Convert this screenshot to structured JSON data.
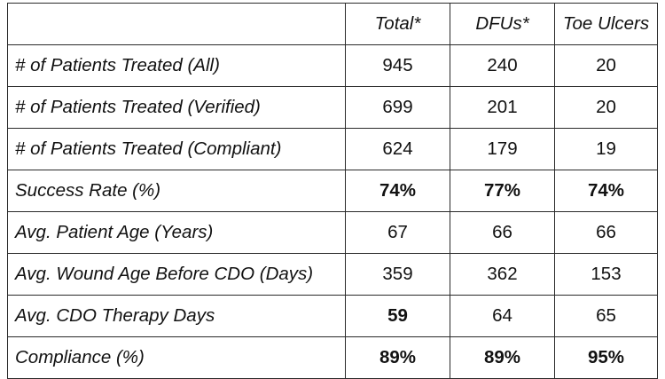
{
  "table": {
    "header": {
      "corner": "",
      "columns": [
        "Total*",
        "DFUs*",
        "Toe Ulcers"
      ]
    },
    "rows": [
      {
        "label": "# of Patients Treated (All)",
        "values": [
          "945",
          "240",
          "20"
        ],
        "bold": [
          false,
          false,
          false
        ]
      },
      {
        "label": "# of Patients Treated (Verified)",
        "values": [
          "699",
          "201",
          "20"
        ],
        "bold": [
          false,
          false,
          false
        ]
      },
      {
        "label": "# of Patients Treated (Compliant)",
        "values": [
          "624",
          "179",
          "19"
        ],
        "bold": [
          false,
          false,
          false
        ]
      },
      {
        "label": "Success Rate (%)",
        "values": [
          "74%",
          "77%",
          "74%"
        ],
        "bold": [
          true,
          true,
          true
        ]
      },
      {
        "label": "Avg. Patient Age (Years)",
        "values": [
          "67",
          "66",
          "66"
        ],
        "bold": [
          false,
          false,
          false
        ]
      },
      {
        "label": "Avg. Wound Age Before CDO (Days)",
        "values": [
          "359",
          "362",
          "153"
        ],
        "bold": [
          false,
          false,
          false
        ]
      },
      {
        "label": "Avg. CDO Therapy Days",
        "values": [
          "59",
          "64",
          "65"
        ],
        "bold": [
          true,
          false,
          false
        ]
      },
      {
        "label": "Compliance (%)",
        "values": [
          "89%",
          "89%",
          "95%"
        ],
        "bold": [
          true,
          true,
          true
        ]
      }
    ]
  }
}
